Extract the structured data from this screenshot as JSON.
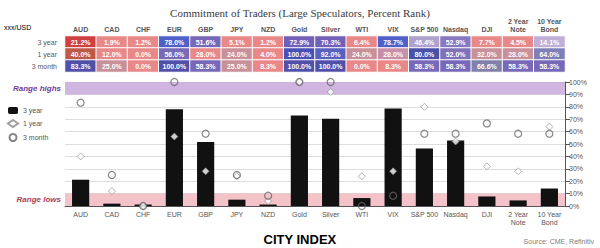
{
  "chart_data": [
    {
      "type": "heatmap",
      "title": "Commitment of Traders (Large Speculators, Percent Rank)",
      "annotation": "xxx/USD",
      "data_labels": true,
      "categories": [
        "AUD",
        "CAD",
        "CHF",
        "EUR",
        "GBP",
        "JPY",
        "NZD",
        "Gold",
        "Silver",
        "WTI",
        "VIX",
        "S&P 500",
        "Nasdaq",
        "DJI",
        "2 Year\nNote",
        "10 Year\nBond"
      ],
      "series": [
        {
          "name": "3 year",
          "values": [
            21.2,
            1.9,
            1.2,
            78.0,
            51.6,
            5.1,
            1.2,
            72.9,
            70.3,
            6.4,
            78.7,
            46.4,
            52.9,
            7.7,
            4.5,
            14.1
          ],
          "value_labels": [
            "21.2%",
            "1.9%",
            "1.2%",
            "78.0%",
            "51.6%",
            "5.1%",
            "1.2%",
            "72.9%",
            "70.3%",
            "6.4%",
            "78.7%",
            "46.4%",
            "52.9%",
            "7.7%",
            "4.5%",
            "14.1%"
          ],
          "colors": [
            "#d04040",
            "#e88888",
            "#e88888",
            "#5060c8",
            "#7868b8",
            "#e88888",
            "#e88888",
            "#7060b8",
            "#7060b8",
            "#e88888",
            "#5060c8",
            "#b0a0cc",
            "#8878c0",
            "#e88888",
            "#e88888",
            "#c0b0d8"
          ]
        },
        {
          "name": "1 year",
          "values": [
            40.0,
            12.0,
            0.0,
            56.0,
            28.0,
            24.0,
            4.0,
            100.0,
            92.0,
            24.0,
            28.0,
            80.0,
            52.0,
            32.0,
            28.0,
            64.0
          ],
          "value_labels": [
            "40.0%",
            "12.0%",
            "0.0%",
            "56.0%",
            "28.0%",
            "24.0%",
            "4.0%",
            "100.0%",
            "92.0%",
            "24.0%",
            "28.0%",
            "80.0%",
            "52.0%",
            "32.0%",
            "28.0%",
            "64.0%"
          ],
          "colors": [
            "#c05848",
            "#e88888",
            "#e88888",
            "#7868b8",
            "#e88888",
            "#c89098",
            "#e88888",
            "#4850b8",
            "#5860c0",
            "#c89098",
            "#c890a8",
            "#4850a8",
            "#8070b8",
            "#c89098",
            "#c89098",
            "#8080b8"
          ]
        },
        {
          "name": "3 month",
          "values": [
            83.3,
            25.0,
            0.0,
            100.0,
            58.3,
            25.0,
            8.3,
            100.0,
            100.0,
            0.0,
            8.3,
            58.3,
            58.3,
            66.6,
            58.3,
            58.3
          ],
          "value_labels": [
            "83.3%",
            "25.0%",
            "0.0%",
            "100.0%",
            "58.3%",
            "25.0%",
            "8.3%",
            "100.0%",
            "100.0%",
            "0.0%",
            "8.3%",
            "58.3%",
            "58.3%",
            "66.6%",
            "58.3%",
            "58.3%"
          ],
          "colors": [
            "#5050a8",
            "#c89098",
            "#e88888",
            "#5050a8",
            "#7868b8",
            "#c89098",
            "#e88888",
            "#5050a8",
            "#5050a8",
            "#e88888",
            "#e88888",
            "#7868b8",
            "#7868b8",
            "#8080a8",
            "#7868b8",
            "#7868b8"
          ]
        }
      ]
    },
    {
      "type": "bar",
      "footer": "CITY INDEX",
      "source": "Source: CME, Refinitiv",
      "categories": [
        "AUD",
        "CAD",
        "CHF",
        "EUR",
        "GBP",
        "JPY",
        "NZD",
        "Gold",
        "Silver",
        "WTI",
        "VIX",
        "S&P 500",
        "Nasdaq",
        "DJI",
        "2 Year\nNote",
        "10 Year\nBond"
      ],
      "series": [
        {
          "name": "3 year",
          "type": "bar",
          "color": "#111111",
          "values": [
            21.2,
            1.9,
            1.2,
            78.0,
            51.6,
            5.1,
            1.2,
            72.9,
            70.3,
            6.4,
            78.7,
            46.4,
            52.9,
            7.7,
            4.5,
            14.1
          ]
        },
        {
          "name": "1 year",
          "type": "scatter",
          "marker": "diamond",
          "color": "#ffffff",
          "values": [
            40.0,
            12.0,
            0.0,
            56.0,
            28.0,
            24.0,
            4.0,
            100.0,
            92.0,
            24.0,
            28.0,
            80.0,
            52.0,
            32.0,
            28.0,
            64.0
          ]
        },
        {
          "name": "3 month",
          "type": "scatter",
          "marker": "circle",
          "color": "#666666",
          "values": [
            83.3,
            25.0,
            0.0,
            100.0,
            58.3,
            25.0,
            8.3,
            100.0,
            100.0,
            0.0,
            8.3,
            58.3,
            58.3,
            66.6,
            58.3,
            58.3
          ]
        }
      ],
      "bands": [
        {
          "from": 90,
          "to": 100,
          "color": "#c8a8dc",
          "label": "Range highs",
          "label_color": "#7040a0"
        },
        {
          "from": 0,
          "to": 10,
          "color": "#f2b8c0",
          "label": "Range lows",
          "label_color": "#b04050"
        }
      ],
      "ylim": [
        0,
        100
      ],
      "yticks": [
        {
          "value": 0,
          "label": "0%"
        },
        {
          "value": 10,
          "label": "10%"
        },
        {
          "value": 20,
          "label": "20%"
        },
        {
          "value": 30,
          "label": "30%"
        },
        {
          "value": 40,
          "label": "40%"
        },
        {
          "value": 50,
          "label": "50%"
        },
        {
          "value": 60,
          "label": "60%"
        },
        {
          "value": 70,
          "label": "70%"
        },
        {
          "value": 80,
          "label": "80%"
        },
        {
          "value": 90,
          "label": "90%"
        },
        {
          "value": 100,
          "label": "100%"
        }
      ],
      "grid": true,
      "legend": "upper left"
    }
  ]
}
